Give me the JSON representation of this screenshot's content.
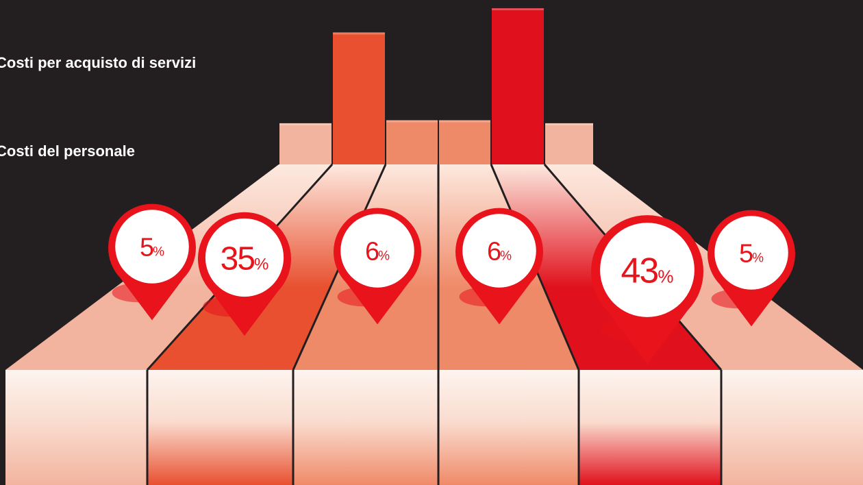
{
  "chart_data": {
    "type": "bar",
    "legend": [
      {
        "label": "Costi per acquisto di servizi"
      },
      {
        "label": "Costi del personale"
      }
    ],
    "values": [
      5,
      35,
      6,
      6,
      43,
      5
    ],
    "value_labels": [
      "5",
      "35",
      "6",
      "6",
      "43",
      "5"
    ],
    "unit": "%",
    "colors": [
      "#f2b49f",
      "#e8502f",
      "#ef8a68",
      "#ef8a68",
      "#e0101c",
      "#f2b49f"
    ]
  }
}
